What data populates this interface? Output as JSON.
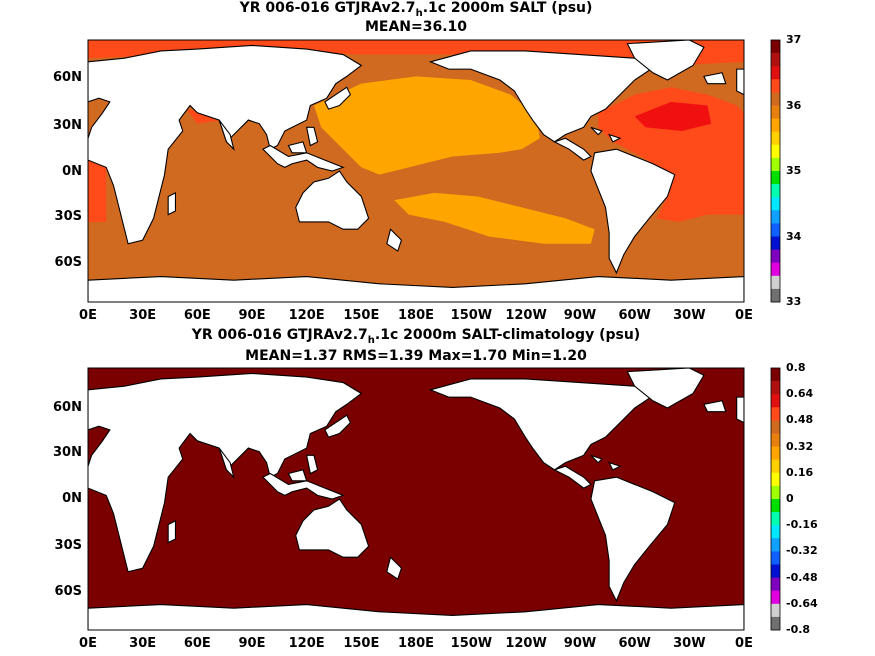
{
  "panel1": {
    "title_pre": "YR 006-016 GTJRAv2.7",
    "title_sub": "h",
    "title_post": ".1c 2000m SALT (psu)",
    "stats": "MEAN=36.10",
    "colorbar": {
      "labels": [
        "37",
        "36",
        "35",
        "34",
        "33"
      ],
      "colors": [
        "#7a0000",
        "#b01010",
        "#e01010",
        "#ff4a1a",
        "#d06a20",
        "#e88010",
        "#ffa500",
        "#ffd000",
        "#ffff00",
        "#a0ff00",
        "#00e000",
        "#00ffb0",
        "#00e8ff",
        "#10a0ff",
        "#1060ff",
        "#0010d0",
        "#8000c0",
        "#e000e0",
        "#d0d0d0",
        "#707070"
      ]
    }
  },
  "panel2": {
    "title_pre": "YR 006-016 GTJRAv2.7",
    "title_sub": "h",
    "title_post": ".1c 2000m SALT-climatology (psu)",
    "stats": "MEAN=1.37   RMS=1.39   Max=1.70   Min=1.20",
    "colorbar": {
      "labels": [
        "0.8",
        "0.64",
        "0.48",
        "0.32",
        "0.16",
        "0",
        "-0.16",
        "-0.32",
        "-0.48",
        "-0.64",
        "-0.8"
      ],
      "colors": [
        "#7a0000",
        "#b01010",
        "#e01010",
        "#ff4a1a",
        "#d06a20",
        "#e88010",
        "#ffa500",
        "#ffd000",
        "#ffff00",
        "#a0ff00",
        "#00e000",
        "#00ffb0",
        "#00e8ff",
        "#10a0ff",
        "#1060ff",
        "#0010d0",
        "#8000c0",
        "#e000e0",
        "#d0d0d0",
        "#707070"
      ]
    }
  },
  "axes": {
    "lat_labels": [
      "60N",
      "30N",
      "0N",
      "30S",
      "60S"
    ],
    "lon_labels": [
      "0E",
      "30E",
      "60E",
      "90E",
      "120E",
      "150E",
      "180E",
      "150W",
      "120W",
      "90W",
      "60W",
      "30W",
      "0E"
    ]
  },
  "map_colors": {
    "land": "#ffffff",
    "coast": "#000000",
    "panel1_ocean_deep": "#d06a20",
    "panel1_pacific": "#ffa500",
    "panel1_atlantic": "#ff4a1a",
    "panel1_atlantic_core": "#f01010",
    "panel2_ocean": "#7a0000"
  }
}
